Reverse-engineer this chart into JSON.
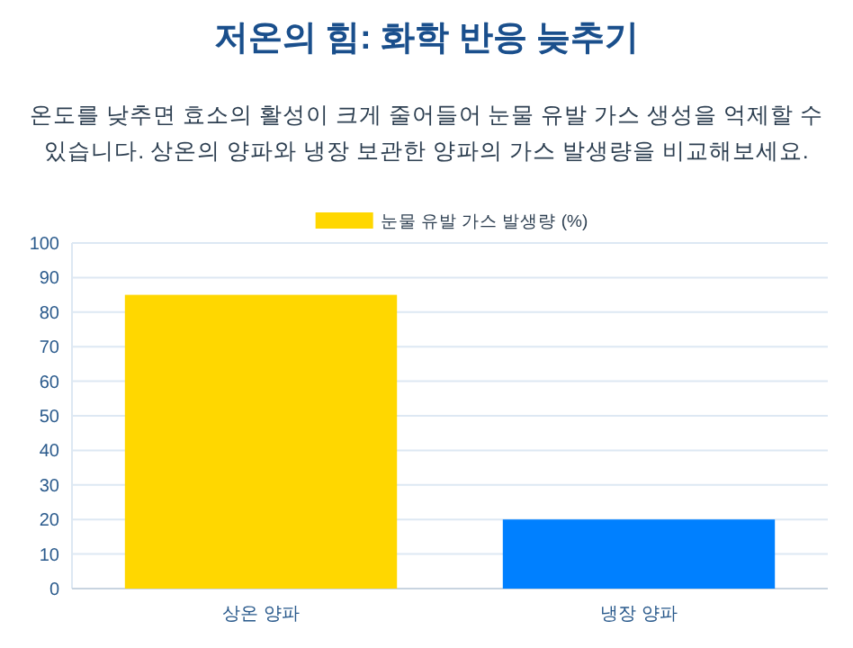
{
  "chart_data": {
    "type": "bar",
    "title": "저온의 힘: 화학 반응 늦추기",
    "subtitle": "온도를 낮추면 효소의 활성이 크게 줄어들어 눈물 유발 가스 생성을 억제할 수 있습니다. 상온의 양파와 냉장 보관한 양파의 가스 발생량을 비교해보세요.",
    "categories": [
      "상온 양파",
      "냉장 양파"
    ],
    "series": [
      {
        "name": "눈물 유발 가스 발생량 (%)",
        "colors": [
          "#ffd700",
          "#0080ff"
        ],
        "values": [
          85,
          20
        ]
      }
    ],
    "ylim": [
      0,
      100
    ],
    "yticks": [
      0,
      10,
      20,
      30,
      40,
      50,
      60,
      70,
      80,
      90,
      100
    ],
    "grid": "y",
    "legend": "top"
  }
}
